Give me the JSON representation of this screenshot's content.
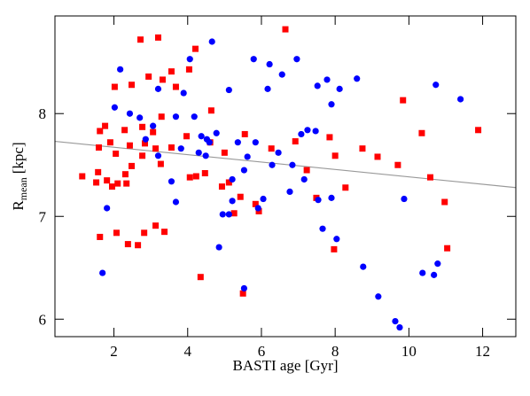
{
  "chart_data": {
    "type": "scatter",
    "xlabel": "BASTI age [Gyr]",
    "ylabel": {
      "base": "R",
      "subscript": "mean",
      "unit": "[kpc]"
    },
    "xlim": [
      0.4,
      12.9
    ],
    "ylim": [
      5.83,
      8.95
    ],
    "xticks": [
      2,
      4,
      6,
      8,
      10,
      12
    ],
    "yticks": [
      6,
      7,
      8
    ],
    "series": [
      {
        "name": "red",
        "color": "#ff0000",
        "marker": "square",
        "x": [
          2.72,
          3.2,
          4.21,
          4.04,
          3.56,
          3.32,
          2.94,
          2.02,
          2.48,
          3.68,
          4.64,
          3.29,
          1.76,
          1.62,
          1.9,
          2.29,
          2.77,
          3.06,
          2.84,
          3.13,
          3.56,
          1.59,
          2.43,
          2.77,
          3.27,
          3.97,
          2.05,
          1.57,
          2.48,
          2.31,
          1.81,
          2.1,
          1.95,
          2.34,
          1.14,
          1.52,
          4.93,
          5.12,
          4.06,
          4.23,
          1.62,
          2.07,
          2.82,
          3.13,
          2.38,
          2.65,
          3.37,
          4.35,
          5.26,
          5.43,
          5.55,
          5.93,
          5.84,
          6.27,
          6.65,
          6.92,
          7.23,
          7.49,
          7.97,
          8.0,
          8.28,
          7.85,
          9.15,
          8.74,
          9.7,
          9.84,
          10.35,
          10.58,
          10.97,
          11.04,
          11.88,
          5.5,
          5.0,
          4.61,
          4.47
        ],
        "y": [
          8.72,
          8.74,
          8.63,
          8.43,
          8.41,
          8.33,
          8.36,
          8.26,
          8.28,
          8.26,
          8.03,
          7.97,
          7.88,
          7.83,
          7.72,
          7.84,
          7.87,
          7.82,
          7.71,
          7.66,
          7.67,
          7.67,
          7.69,
          7.59,
          7.51,
          7.78,
          7.61,
          7.43,
          7.49,
          7.41,
          7.35,
          7.32,
          7.29,
          7.32,
          7.39,
          7.33,
          7.29,
          7.33,
          7.38,
          7.39,
          6.8,
          6.84,
          6.84,
          6.91,
          6.73,
          6.72,
          6.85,
          6.41,
          7.03,
          7.19,
          7.8,
          7.05,
          7.12,
          7.66,
          8.82,
          7.73,
          7.45,
          7.18,
          6.68,
          7.59,
          7.28,
          7.77,
          7.58,
          7.66,
          7.5,
          8.13,
          7.81,
          7.38,
          7.14,
          6.69,
          7.84,
          6.25,
          7.62,
          7.72,
          7.42
        ]
      },
      {
        "name": "blue",
        "color": "#0000ff",
        "marker": "circle",
        "x": [
          4.66,
          4.06,
          2.17,
          3.2,
          3.89,
          5.12,
          3.68,
          4.18,
          3.06,
          2.86,
          3.2,
          3.56,
          3.82,
          4.78,
          4.52,
          4.3,
          4.49,
          3.68,
          5.12,
          4.37,
          5.79,
          6.22,
          6.56,
          6.17,
          6.96,
          7.52,
          7.78,
          7.9,
          8.12,
          7.47,
          7.08,
          5.84,
          5.53,
          5.62,
          6.29,
          6.84,
          6.46,
          6.77,
          5.91,
          4.95,
          4.85,
          5.53,
          5.21,
          7.54,
          7.66,
          8.04,
          7.9,
          7.25,
          4.59,
          8.59,
          8.76,
          9.17,
          9.63,
          9.75,
          9.87,
          10.37,
          10.68,
          10.78,
          10.73,
          11.4,
          7.16,
          1.81,
          1.69,
          2.02,
          2.43,
          2.7,
          5.36,
          6.05,
          5.21
        ],
        "y": [
          8.7,
          8.53,
          8.43,
          8.24,
          8.2,
          8.23,
          7.97,
          7.97,
          7.88,
          7.75,
          7.59,
          7.34,
          7.66,
          7.81,
          7.75,
          7.62,
          7.59,
          7.14,
          7.02,
          7.78,
          8.53,
          8.48,
          8.38,
          8.24,
          8.53,
          8.27,
          8.33,
          8.09,
          8.24,
          7.83,
          7.8,
          7.72,
          7.45,
          7.58,
          7.5,
          7.5,
          7.62,
          7.24,
          7.08,
          7.02,
          6.7,
          6.3,
          7.15,
          7.16,
          6.88,
          6.78,
          7.18,
          7.84,
          7.72,
          8.34,
          6.51,
          6.22,
          5.98,
          5.92,
          7.17,
          6.45,
          6.43,
          6.54,
          8.28,
          8.14,
          7.36,
          7.08,
          6.45,
          8.06,
          8.0,
          7.96,
          7.72,
          7.17,
          7.36
        ]
      }
    ],
    "fit_line": {
      "color": "#999999",
      "x": [
        0.4,
        12.9
      ],
      "y": [
        7.73,
        7.28
      ]
    }
  }
}
